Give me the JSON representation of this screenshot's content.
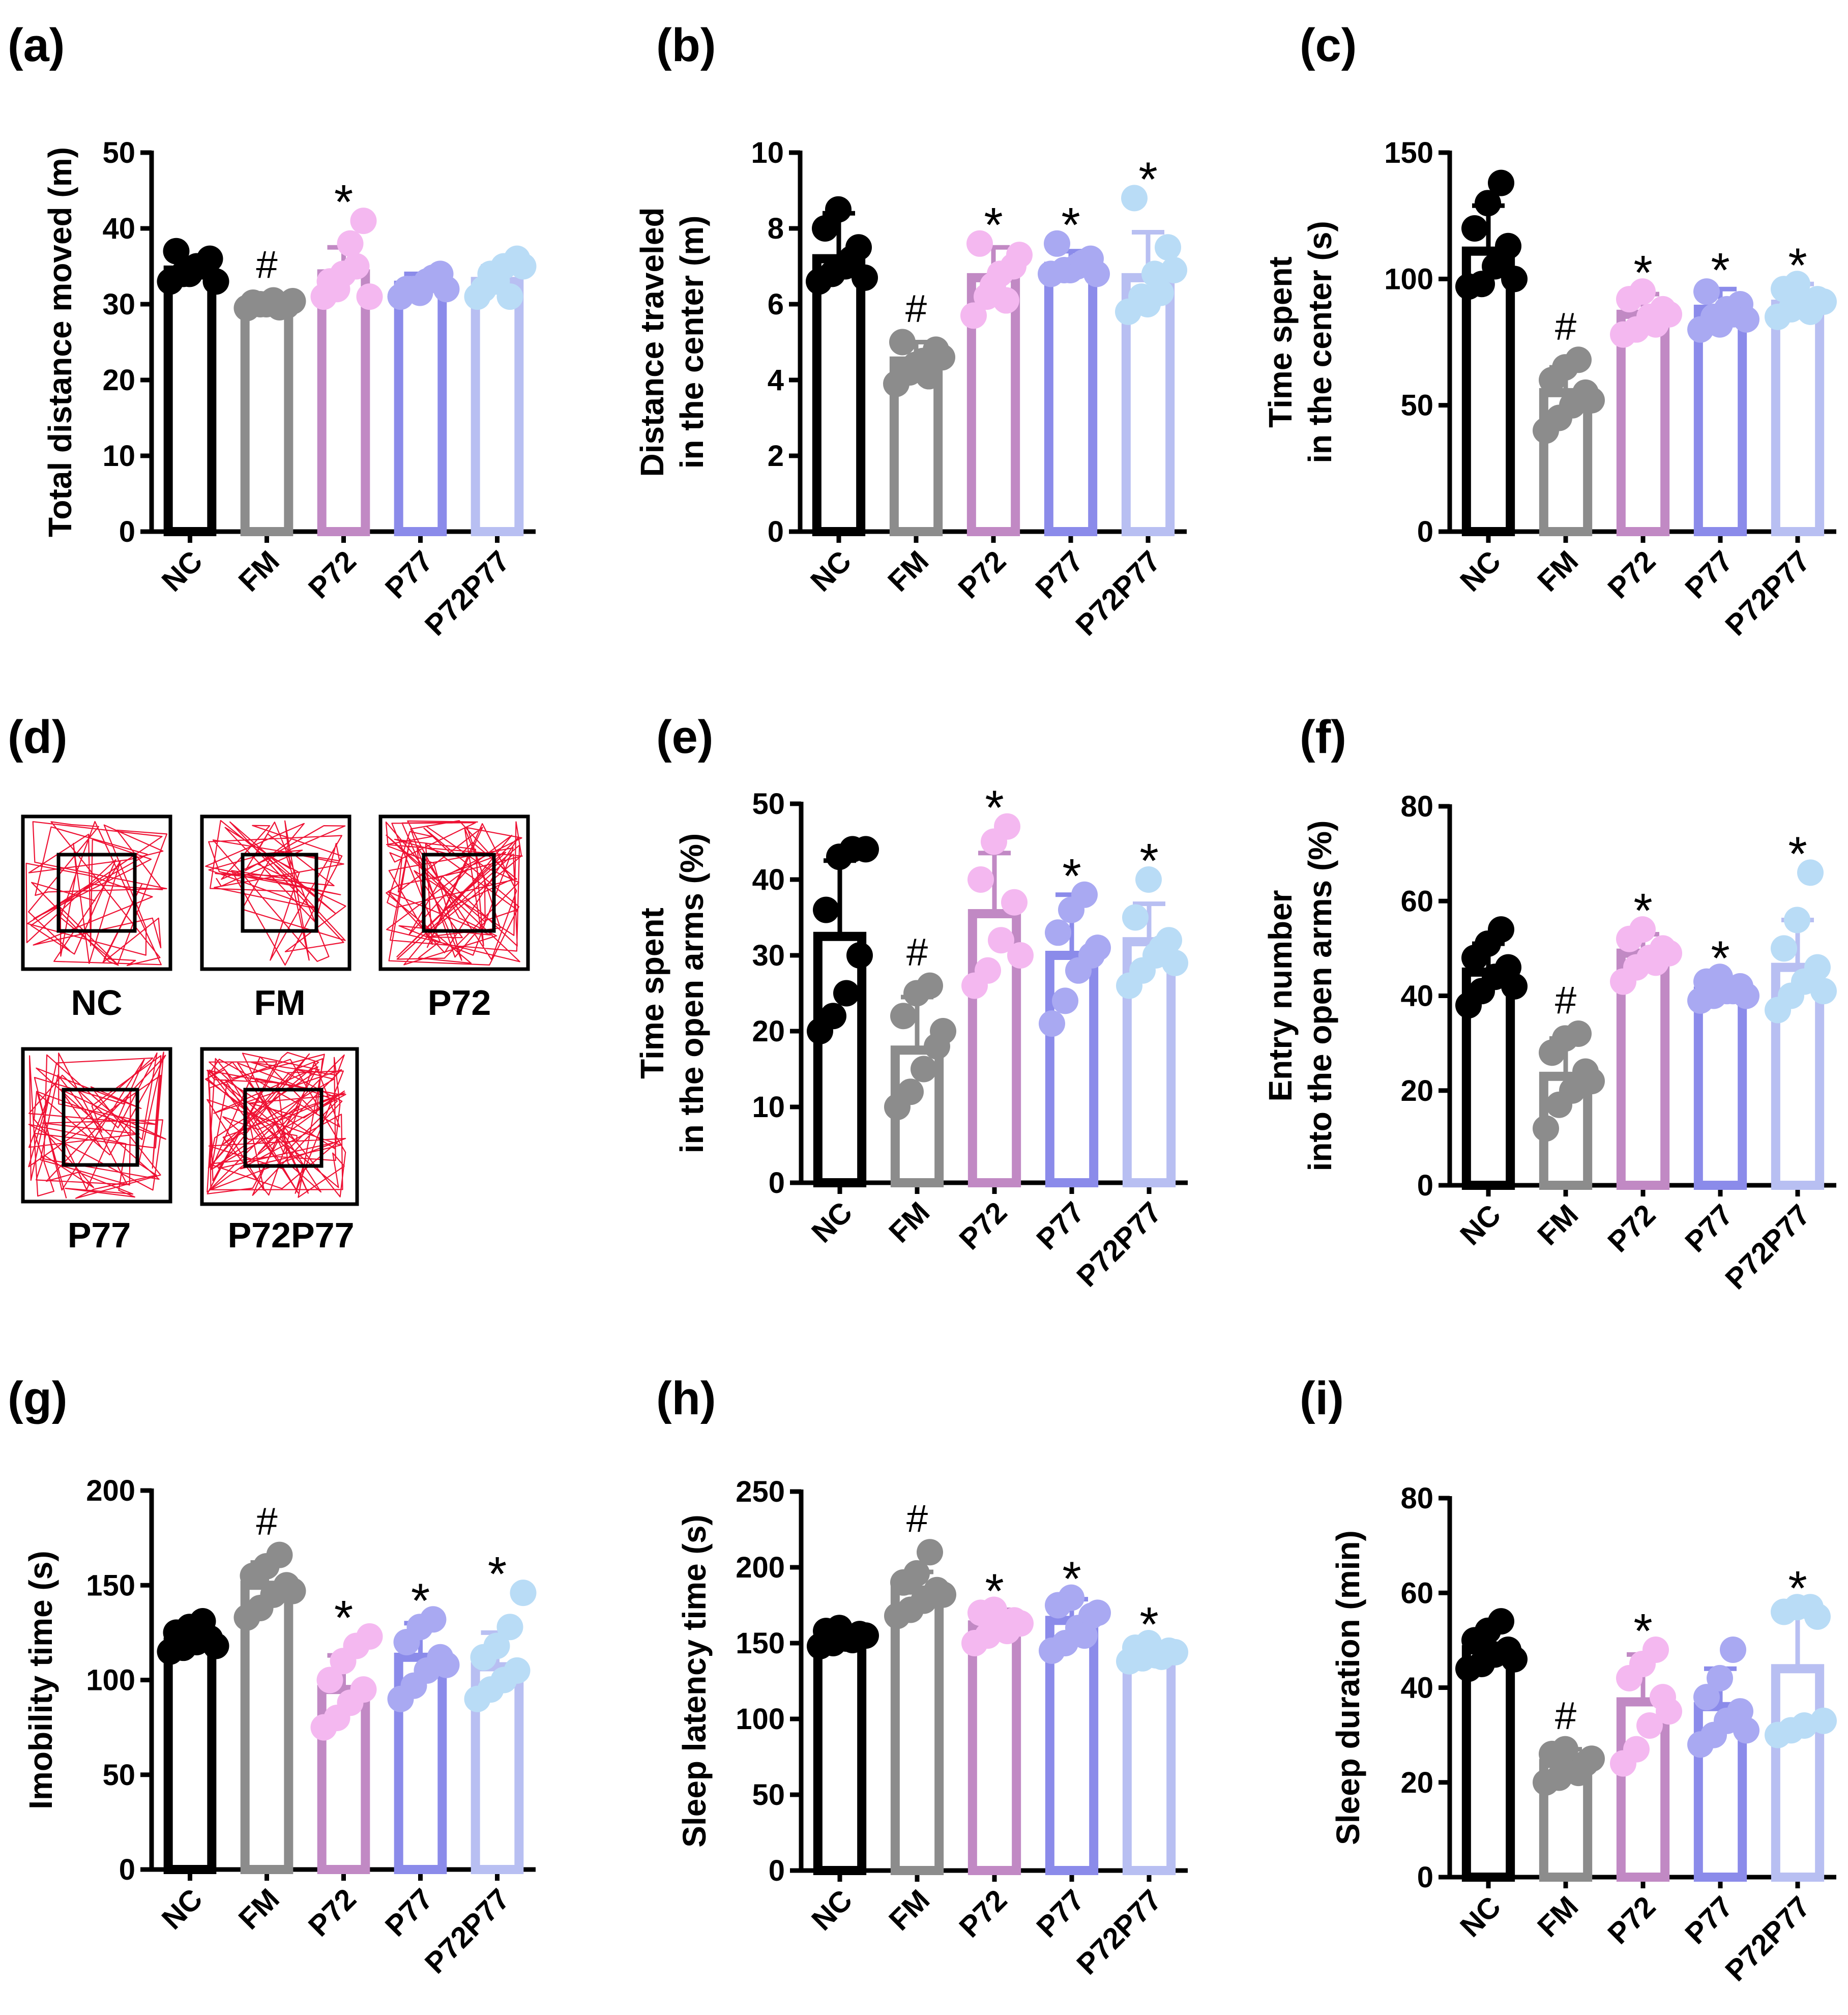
{
  "colors": {
    "NC": "#000000",
    "FM": "#8c8c8c",
    "P72": "#c189c4",
    "P77": "#8b8bea",
    "P72P77": "#b8bff2",
    "P72_dots": "#f4b8f0",
    "P77_dots": "#a9a9f2",
    "P72P77_dots": "#b9dcf6",
    "track_line": "#ee1133",
    "frame": "#000000"
  },
  "categories": [
    "NC",
    "FM",
    "P72",
    "P77",
    "P72P77"
  ],
  "tracks": {
    "panel_label": "(d)",
    "items": [
      {
        "label": "NC",
        "density": 60
      },
      {
        "label": "FM",
        "density": 55
      },
      {
        "label": "P72",
        "density": 95
      },
      {
        "label": "P77",
        "density": 70
      },
      {
        "label": "P72P77",
        "density": 110
      }
    ]
  },
  "chart_data": [
    {
      "panel": "(a)",
      "type": "bar",
      "title": "",
      "xlabel": "",
      "ylabel": [
        "Total distance moved (m)"
      ],
      "ylim": [
        0,
        50
      ],
      "yticks": [
        0,
        10,
        20,
        30,
        40,
        50
      ],
      "categories": [
        "NC",
        "FM",
        "P72",
        "P77",
        "P72P77"
      ],
      "means": [
        34.5,
        30,
        34,
        32.5,
        33
      ],
      "sd": [
        1.5,
        0.8,
        3.5,
        1.5,
        2
      ],
      "points": [
        [
          33,
          34,
          35,
          36,
          37,
          34,
          35,
          33
        ],
        [
          29.5,
          30,
          30.5,
          29.8,
          30.2,
          30,
          29.6,
          30.4
        ],
        [
          31,
          32,
          38,
          41,
          33,
          34,
          35,
          31
        ],
        [
          31,
          32,
          33,
          34,
          32,
          31.5,
          33.5,
          32
        ],
        [
          31,
          34,
          35,
          36,
          32,
          33,
          31,
          35
        ]
      ],
      "annotations": [
        "",
        "#",
        "*",
        "",
        ""
      ]
    },
    {
      "panel": "(b)",
      "type": "bar",
      "title": "",
      "xlabel": "",
      "ylabel": [
        "Distance traveled",
        "in the center (m)"
      ],
      "ylim": [
        0,
        10
      ],
      "yticks": [
        0,
        2,
        4,
        6,
        8,
        10
      ],
      "categories": [
        "NC",
        "FM",
        "P72",
        "P77",
        "P72P77"
      ],
      "means": [
        7.2,
        4.5,
        6.7,
        7,
        6.7
      ],
      "sd": [
        1.2,
        0.5,
        0.8,
        0.4,
        1.2
      ],
      "points": [
        [
          6.6,
          6.8,
          7,
          7.5,
          8,
          8.5,
          7.2,
          6.7
        ],
        [
          3.9,
          4.2,
          4.5,
          4.8,
          5,
          4.4,
          4.1,
          4.6
        ],
        [
          5.7,
          6.2,
          6.8,
          7,
          7.6,
          6.5,
          6.1,
          7.3
        ],
        [
          6.8,
          6.9,
          7,
          7.2,
          7.6,
          6.9,
          7.1,
          6.8
        ],
        [
          5.8,
          6.2,
          6.8,
          7.5,
          8.8,
          6,
          6.3,
          6.9
        ]
      ],
      "annotations": [
        "",
        "#",
        "*",
        "*",
        "*"
      ]
    },
    {
      "panel": "(c)",
      "type": "bar",
      "title": "",
      "xlabel": "",
      "ylabel": [
        "Time spent",
        "in the center (s)"
      ],
      "ylim": [
        0,
        150
      ],
      "yticks": [
        0,
        50,
        100,
        150
      ],
      "categories": [
        "NC",
        "FM",
        "P72",
        "P77",
        "P72P77"
      ],
      "means": [
        111,
        55,
        86,
        88,
        90
      ],
      "sd": [
        18,
        10,
        8,
        8,
        8
      ],
      "points": [
        [
          97,
          98,
          105,
          113,
          120,
          130,
          138,
          100
        ],
        [
          40,
          45,
          50,
          55,
          60,
          65,
          68,
          52
        ],
        [
          78,
          80,
          85,
          88,
          92,
          95,
          82,
          86
        ],
        [
          80,
          85,
          88,
          90,
          95,
          82,
          86,
          84
        ],
        [
          85,
          88,
          90,
          92,
          96,
          98,
          87,
          91
        ]
      ],
      "annotations": [
        "",
        "#",
        "*",
        "*",
        "*"
      ]
    },
    {
      "panel": "(e)",
      "type": "bar",
      "title": "",
      "xlabel": "",
      "ylabel": [
        "Time spent",
        "in the open arms (%)"
      ],
      "ylim": [
        0,
        50
      ],
      "yticks": [
        0,
        10,
        20,
        30,
        40,
        50
      ],
      "categories": [
        "NC",
        "FM",
        "P72",
        "P77",
        "P72P77"
      ],
      "means": [
        32.5,
        17.5,
        35.5,
        30,
        31.8
      ],
      "sd": [
        10,
        7,
        8,
        8,
        5
      ],
      "points": [
        [
          20,
          22,
          25,
          30,
          36,
          43,
          44,
          44
        ],
        [
          10,
          12,
          15,
          18,
          22,
          25,
          26,
          20
        ],
        [
          26,
          28,
          32,
          37,
          40,
          45,
          47,
          30
        ],
        [
          21,
          24,
          28,
          30,
          33,
          36,
          38,
          31
        ],
        [
          26,
          28,
          30,
          32,
          35,
          40,
          31,
          29
        ]
      ],
      "annotations": [
        "",
        "#",
        "*",
        "*",
        "*"
      ]
    },
    {
      "panel": "(f)",
      "type": "bar",
      "title": "",
      "xlabel": "",
      "ylabel": [
        "Entry number",
        "into the open arms (%)"
      ],
      "ylim": [
        0,
        80
      ],
      "yticks": [
        0,
        20,
        40,
        60,
        80
      ],
      "categories": [
        "NC",
        "FM",
        "P72",
        "P77",
        "P72P77"
      ],
      "means": [
        45,
        23,
        49,
        41,
        46
      ],
      "sd": [
        6,
        8,
        4,
        2,
        10
      ],
      "points": [
        [
          38,
          41,
          44,
          46,
          48,
          51,
          54,
          42
        ],
        [
          12,
          17,
          20,
          24,
          28,
          31,
          32,
          22
        ],
        [
          43,
          46,
          48,
          50,
          52,
          54,
          47,
          49
        ],
        [
          39,
          40,
          41,
          42,
          43,
          44,
          41,
          40
        ],
        [
          37,
          40,
          43,
          46,
          50,
          56,
          66,
          41
        ]
      ],
      "annotations": [
        "",
        "#",
        "*",
        "*",
        "*"
      ]
    },
    {
      "panel": "(g)",
      "type": "bar",
      "title": "",
      "xlabel": "",
      "ylabel": [
        "Imobility time (s)"
      ],
      "ylim": [
        0,
        200
      ],
      "yticks": [
        0,
        50,
        100,
        150,
        200
      ],
      "categories": [
        "NC",
        "FM",
        "P72",
        "P77",
        "P72P77"
      ],
      "means": [
        120,
        150,
        95,
        112,
        107
      ],
      "sd": [
        7,
        12,
        18,
        18,
        18
      ],
      "points": [
        [
          115,
          117,
          120,
          122,
          125,
          128,
          131,
          118
        ],
        [
          133,
          138,
          145,
          150,
          155,
          160,
          166,
          147
        ],
        [
          75,
          80,
          88,
          95,
          100,
          110,
          118,
          123
        ],
        [
          90,
          97,
          105,
          112,
          120,
          128,
          132,
          108
        ],
        [
          90,
          95,
          100,
          105,
          112,
          118,
          128,
          146
        ]
      ],
      "annotations": [
        "",
        "#",
        "*",
        "*",
        "*"
      ]
    },
    {
      "panel": "(h)",
      "type": "bar",
      "title": "",
      "xlabel": "",
      "ylabel": [
        "Sleep latency time (s)"
      ],
      "ylim": [
        0,
        250
      ],
      "yticks": [
        0,
        50,
        100,
        150,
        200,
        250
      ],
      "categories": [
        "NC",
        "FM",
        "P72",
        "P77",
        "P72P77"
      ],
      "means": [
        155,
        185,
        162,
        165,
        143
      ],
      "sd": [
        6,
        12,
        10,
        14,
        5
      ],
      "points": [
        [
          148,
          150,
          153,
          156,
          158,
          160,
          152,
          155
        ],
        [
          168,
          172,
          178,
          185,
          190,
          196,
          210,
          182
        ],
        [
          150,
          155,
          160,
          165,
          170,
          172,
          158,
          163
        ],
        [
          145,
          150,
          160,
          168,
          175,
          180,
          155,
          170
        ],
        [
          138,
          140,
          142,
          145,
          147,
          150,
          141,
          144
        ]
      ],
      "annotations": [
        "",
        "#",
        "*",
        "*",
        "*"
      ]
    },
    {
      "panel": "(i)",
      "type": "bar",
      "title": "",
      "xlabel": "",
      "ylabel": [
        "Sleep duration (min)"
      ],
      "ylim": [
        0,
        80
      ],
      "yticks": [
        0,
        20,
        40,
        60,
        80
      ],
      "categories": [
        "NC",
        "FM",
        "P72",
        "P77",
        "P72P77"
      ],
      "means": [
        48,
        24,
        37,
        36,
        44
      ],
      "sd": [
        4,
        3,
        10,
        8,
        13
      ],
      "points": [
        [
          44,
          45,
          47,
          48,
          50,
          52,
          54,
          46
        ],
        [
          20,
          21,
          23,
          24,
          26,
          27,
          22,
          25
        ],
        [
          24,
          27,
          32,
          38,
          42,
          45,
          48,
          35
        ],
        [
          28,
          30,
          33,
          35,
          38,
          42,
          48,
          31
        ],
        [
          30,
          31,
          32,
          55,
          56,
          57,
          57,
          33
        ]
      ],
      "annotations": [
        "",
        "#",
        "*",
        "",
        "*"
      ]
    }
  ]
}
